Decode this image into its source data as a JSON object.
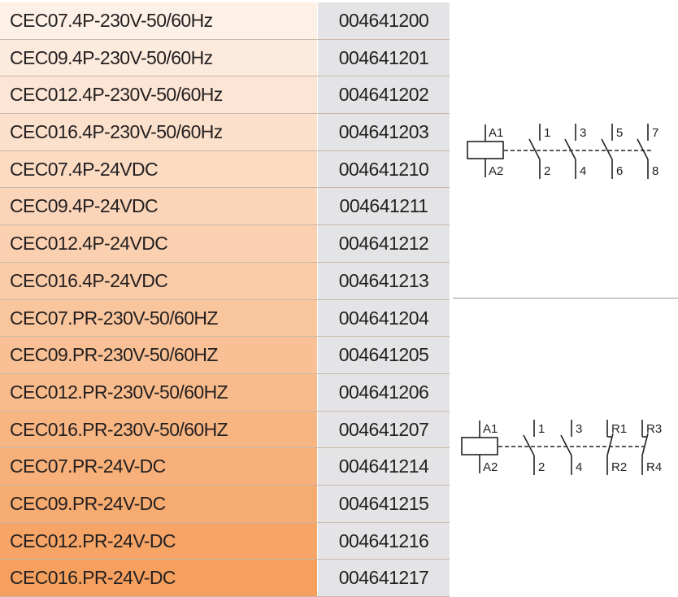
{
  "colors": {
    "gradient_top": "#fdf0e6",
    "gradient_bottom": "#f5a05e",
    "code_bg": "#e4e4e6"
  },
  "rows": [
    {
      "name": "CEC07.4P-230V-50/60Hz",
      "code": "004641200"
    },
    {
      "name": "CEC09.4P-230V-50/60Hz",
      "code": "004641201"
    },
    {
      "name": "CEC012.4P-230V-50/60Hz",
      "code": "004641202"
    },
    {
      "name": "CEC016.4P-230V-50/60Hz",
      "code": "004641203"
    },
    {
      "name": "CEC07.4P-24VDC",
      "code": "004641210"
    },
    {
      "name": "CEC09.4P-24VDC",
      "code": "004641211"
    },
    {
      "name": "CEC012.4P-24VDC",
      "code": "004641212"
    },
    {
      "name": "CEC016.4P-24VDC",
      "code": "004641213"
    },
    {
      "name": "CEC07.PR-230V-50/60HZ",
      "code": "004641204"
    },
    {
      "name": "CEC09.PR-230V-50/60HZ",
      "code": "004641205"
    },
    {
      "name": "CEC012.PR-230V-50/60HZ",
      "code": "004641206"
    },
    {
      "name": "CEC016.PR-230V-50/60HZ",
      "code": "004641207"
    },
    {
      "name": "CEC07.PR-24V-DC",
      "code": "004641214"
    },
    {
      "name": "CEC09.PR-24V-DC",
      "code": "004641215"
    },
    {
      "name": "CEC012.PR-24V-DC",
      "code": "004641216"
    },
    {
      "name": "CEC016.PR-24V-DC",
      "code": "004641217"
    }
  ],
  "diagram_4p": {
    "coil_top": "A1",
    "coil_bottom": "A2",
    "contacts": [
      {
        "top": "1",
        "bottom": "2",
        "type": "NO"
      },
      {
        "top": "3",
        "bottom": "4",
        "type": "NO"
      },
      {
        "top": "5",
        "bottom": "6",
        "type": "NO"
      },
      {
        "top": "7",
        "bottom": "8",
        "type": "NO"
      }
    ]
  },
  "diagram_pr": {
    "coil_top": "A1",
    "coil_bottom": "A2",
    "contacts": [
      {
        "top": "1",
        "bottom": "2",
        "type": "NO"
      },
      {
        "top": "3",
        "bottom": "4",
        "type": "NO"
      },
      {
        "top": "R1",
        "bottom": "R2",
        "type": "NC"
      },
      {
        "top": "R3",
        "bottom": "R4",
        "type": "NC"
      }
    ]
  }
}
